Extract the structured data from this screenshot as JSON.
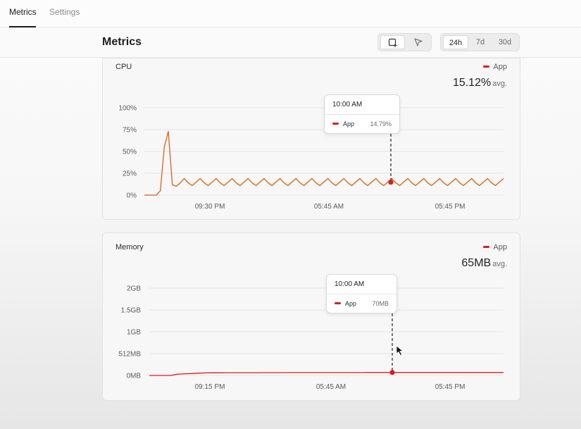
{
  "nav": {
    "tabs": [
      {
        "label": "Metrics",
        "active": true
      },
      {
        "label": "Settings",
        "active": false
      }
    ]
  },
  "header": {
    "title": "Metrics",
    "view_modes": [
      "add-widget-icon",
      "pointer-icon"
    ],
    "ranges": [
      {
        "label": "24h",
        "selected": true
      },
      {
        "label": "7d",
        "selected": false
      },
      {
        "label": "30d",
        "selected": false
      }
    ]
  },
  "colors": {
    "series": "#d51f1f",
    "cpu_line": "#d4631c",
    "memory_line": "#d51f1f"
  },
  "cpu": {
    "title": "CPU",
    "legend": "App",
    "avg_value": "15.12%",
    "avg_unit": "avg.",
    "tooltip": {
      "time": "10:00 AM",
      "series": "App",
      "value": "14.79%"
    },
    "y_ticks": [
      "100%",
      "75%",
      "50%",
      "25%",
      "0%"
    ],
    "x_ticks": [
      "09:30 PM",
      "05:45 AM",
      "05:45 PM"
    ]
  },
  "memory": {
    "title": "Memory",
    "legend": "App",
    "avg_value": "65MB",
    "avg_unit": "avg.",
    "tooltip": {
      "time": "10:00 AM",
      "series": "App",
      "value": "70MB"
    },
    "y_ticks": [
      "2GB",
      "1.5GB",
      "1GB",
      "512MB",
      "0MB"
    ],
    "x_ticks": [
      "09:15 PM",
      "05:45 AM",
      "05:45 PM"
    ]
  },
  "chart_data": [
    {
      "type": "line",
      "title": "CPU",
      "xlabel": "",
      "ylabel": "",
      "ylim": [
        0,
        100
      ],
      "grid": true,
      "legend": "top-right",
      "series": [
        {
          "name": "App",
          "values": [
            0,
            0,
            0,
            0,
            5,
            55,
            73,
            12,
            10,
            14,
            19,
            14,
            11,
            15,
            19,
            14,
            11,
            15,
            19,
            14,
            11,
            15,
            19,
            14,
            11,
            15,
            19,
            14,
            11,
            15,
            19,
            14,
            11,
            15,
            19,
            14,
            11,
            15,
            19,
            14,
            11,
            15,
            19,
            14,
            11,
            15,
            19,
            14,
            11,
            15,
            19,
            14,
            11,
            15,
            19,
            14,
            11,
            15,
            19,
            14,
            11,
            15,
            19,
            14,
            11,
            15,
            19,
            14,
            11,
            15,
            19,
            14,
            11,
            15,
            19,
            14,
            11,
            15,
            19,
            14,
            11,
            15,
            19,
            14,
            11,
            15,
            19,
            14,
            11,
            15,
            19
          ]
        }
      ],
      "highlight": {
        "label": "10:00 AM",
        "value": 14.79
      }
    },
    {
      "type": "line",
      "title": "Memory",
      "xlabel": "",
      "ylabel": "",
      "ylim": [
        0,
        2048
      ],
      "grid": true,
      "legend": "top-right",
      "series": [
        {
          "name": "App",
          "values": [
            0,
            0,
            0,
            0,
            30,
            40,
            45,
            55,
            60,
            62,
            63,
            64,
            64,
            65,
            65,
            65,
            66,
            66,
            66,
            66,
            67,
            67,
            67,
            67,
            67,
            68,
            68,
            68,
            68,
            68,
            68,
            69,
            69,
            69,
            69,
            69,
            69,
            69,
            70,
            70,
            70,
            70,
            70,
            70,
            70,
            70,
            70,
            70,
            70,
            70,
            70
          ]
        }
      ],
      "highlight": {
        "label": "10:00 AM",
        "value": 70
      }
    }
  ]
}
